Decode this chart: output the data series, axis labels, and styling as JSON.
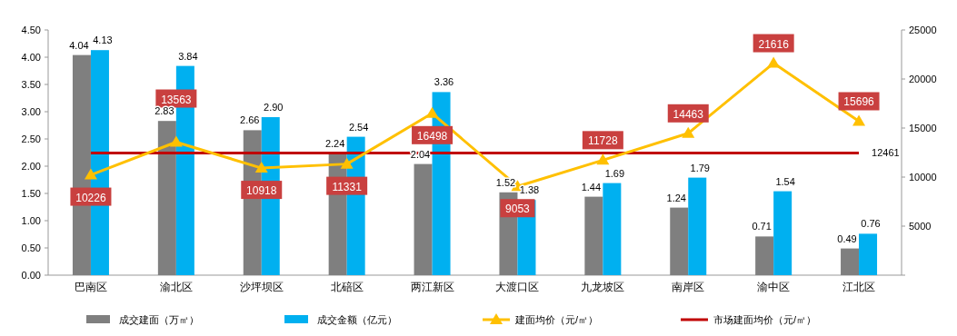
{
  "chart_data": {
    "type": "bar",
    "categories": [
      "巴南区",
      "渝北区",
      "沙坪坝区",
      "北碚区",
      "两江新区",
      "大渡口区",
      "九龙坡区",
      "南岸区",
      "渝中区",
      "江北区"
    ],
    "series": [
      {
        "name": "成交建面（万㎡）",
        "color": "#7f7f7f",
        "values": [
          4.04,
          2.83,
          2.66,
          2.24,
          2.04,
          1.52,
          1.44,
          1.24,
          0.71,
          0.49
        ],
        "value_labels": [
          "4.04",
          "2.83",
          "2.66",
          "2.24",
          "2.04",
          "1.52",
          "1.44",
          "1.24",
          "0.71",
          "0.49"
        ]
      },
      {
        "name": "成交金额（亿元）",
        "color": "#00b0f0",
        "values": [
          4.13,
          3.84,
          2.9,
          2.54,
          3.36,
          1.38,
          1.69,
          1.79,
          1.54,
          0.76
        ],
        "value_labels": [
          "4.13",
          "3.84",
          "2.90",
          "2.54",
          "3.36",
          "1.38",
          "1.69",
          "1.79",
          "1.54",
          "0.76"
        ]
      },
      {
        "name": "建面均价（元/㎡）",
        "type": "line",
        "axis": "y2",
        "color": "#ffc000",
        "marker": "triangle",
        "values": [
          10226,
          13563,
          10918,
          11331,
          16498,
          9053,
          11728,
          14463,
          21616,
          15696
        ],
        "value_labels": [
          "10226",
          "13563",
          "10918",
          "11331",
          "16498",
          "9053",
          "11728",
          "14463",
          "21616",
          "15696"
        ]
      },
      {
        "name": "市场建面均价（元/㎡）",
        "type": "line",
        "axis": "y2",
        "color": "#c00000",
        "marker": "none",
        "values": [
          12461,
          12461,
          12461,
          12461,
          12461,
          12461,
          12461,
          12461,
          12461,
          12461
        ],
        "value_labels": [
          null,
          null,
          null,
          null,
          null,
          null,
          null,
          null,
          null,
          "12461"
        ]
      }
    ],
    "ylim": [
      0,
      4.5
    ],
    "yticks": [
      {
        "value": 0,
        "label": "0.00"
      },
      {
        "value": 0.5,
        "label": "0.50"
      },
      {
        "value": 1,
        "label": "1.00"
      },
      {
        "value": 1.5,
        "label": "1.50"
      },
      {
        "value": 2,
        "label": "2.00"
      },
      {
        "value": 2.5,
        "label": "2.50"
      },
      {
        "value": 3,
        "label": "3.00"
      },
      {
        "value": 3.5,
        "label": "3.50"
      },
      {
        "value": 4,
        "label": "4.00"
      },
      {
        "value": 4.5,
        "label": "4.50"
      }
    ],
    "y2lim": [
      0,
      25000
    ],
    "y2ticks": [
      {
        "value": 0,
        "label": null
      },
      5000,
      10000,
      15000,
      20000,
      25000
    ],
    "legend": "bottom",
    "grid": false
  }
}
